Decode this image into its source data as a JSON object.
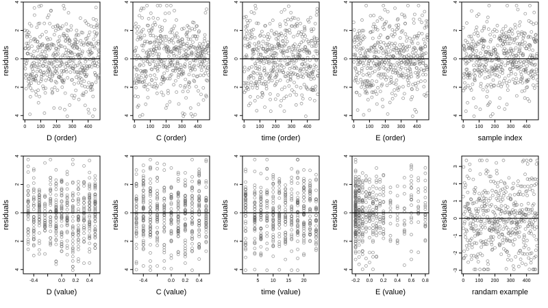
{
  "chart_data": [
    {
      "type": "scatter",
      "xlabel": "D (order)",
      "ylabel": "residuals",
      "xlim": [
        -10,
        475
      ],
      "ylim": [
        -4.3,
        4.0
      ],
      "xticks": [
        0,
        100,
        200,
        300,
        400
      ],
      "yticks": [
        -4,
        -2,
        0,
        2,
        4
      ],
      "ytick_labels": [
        "4",
        "2",
        "0",
        "2",
        "4"
      ],
      "hline": 0,
      "dist": "index",
      "n": 470,
      "seed": 11
    },
    {
      "type": "scatter",
      "xlabel": "C (order)",
      "ylabel": "residuals",
      "xlim": [
        -10,
        475
      ],
      "ylim": [
        -4.3,
        4.0
      ],
      "xticks": [
        0,
        100,
        200,
        300,
        400
      ],
      "yticks": [
        -4,
        -2,
        0,
        2,
        4
      ],
      "ytick_labels": [
        "4",
        "2",
        "0",
        "2",
        "4"
      ],
      "hline": 0,
      "dist": "index",
      "n": 470,
      "seed": 23
    },
    {
      "type": "scatter",
      "xlabel": "time (order)",
      "ylabel": "residuals",
      "xlim": [
        -10,
        475
      ],
      "ylim": [
        -4.3,
        4.0
      ],
      "xticks": [
        0,
        100,
        200,
        300,
        400
      ],
      "yticks": [
        -4,
        -2,
        0,
        2,
        4
      ],
      "ytick_labels": [
        "4",
        "2",
        "0",
        "2",
        "4"
      ],
      "hline": 0,
      "dist": "index",
      "n": 470,
      "seed": 37
    },
    {
      "type": "scatter",
      "xlabel": "E (order)",
      "ylabel": "residuals",
      "xlim": [
        -10,
        475
      ],
      "ylim": [
        -4.3,
        4.0
      ],
      "xticks": [
        0,
        100,
        200,
        300,
        400
      ],
      "yticks": [
        -4,
        -2,
        0,
        2,
        4
      ],
      "ytick_labels": [
        "4",
        "2",
        "0",
        "2",
        "4"
      ],
      "hline": 0,
      "dist": "index",
      "n": 470,
      "seed": 41
    },
    {
      "type": "scatter",
      "xlabel": "sample index",
      "ylabel": "residuals",
      "xlim": [
        -10,
        475
      ],
      "ylim": [
        -4.3,
        4.0
      ],
      "xticks": [
        0,
        100,
        200,
        300,
        400
      ],
      "yticks": [
        -4,
        -2,
        0,
        2,
        4
      ],
      "ytick_labels": [
        "4",
        "2",
        "0",
        "2",
        "4"
      ],
      "hline": 0,
      "dist": "index",
      "n": 470,
      "seed": 53
    },
    {
      "type": "scatter",
      "xlabel": "D (value)",
      "ylabel": "residuals",
      "xlim": [
        -0.55,
        0.55
      ],
      "ylim": [
        -4.3,
        4.0
      ],
      "xticks": [
        -0.4,
        -0.2,
        0,
        0.2,
        0.4
      ],
      "xtick_labels": [
        "-0.4",
        "",
        "0.0",
        "0.2",
        "0.4"
      ],
      "yticks": [
        -4,
        -2,
        0,
        2,
        4
      ],
      "ytick_labels": [
        "4",
        "2",
        "0",
        "2",
        "4"
      ],
      "hline": 0,
      "dist": "levels",
      "levels": [
        -0.48,
        -0.4,
        -0.32,
        -0.24,
        -0.16,
        -0.08,
        0,
        0.08,
        0.16,
        0.24,
        0.32,
        0.4,
        0.48
      ],
      "n": 470,
      "seed": 61
    },
    {
      "type": "scatter",
      "xlabel": "C (value)",
      "ylabel": "residuals",
      "xlim": [
        -0.55,
        0.55
      ],
      "ylim": [
        -4.3,
        4.0
      ],
      "xticks": [
        -0.4,
        -0.2,
        0,
        0.2,
        0.4
      ],
      "xtick_labels": [
        "-0.4",
        "",
        "0.0",
        "0.2",
        "0.4"
      ],
      "yticks": [
        -4,
        -2,
        0,
        2,
        4
      ],
      "ytick_labels": [
        "4",
        "2",
        "0",
        "2",
        "4"
      ],
      "hline": 0,
      "dist": "levels",
      "levels": [
        -0.5,
        -0.4,
        -0.3,
        -0.2,
        -0.1,
        0,
        0.1,
        0.2,
        0.3,
        0.4,
        0.5
      ],
      "n": 470,
      "seed": 71
    },
    {
      "type": "scatter",
      "xlabel": "time (value)",
      "ylabel": "residuals",
      "xlim": [
        0,
        25
      ],
      "ylim": [
        -4.3,
        4.0
      ],
      "xticks": [
        5,
        10,
        15,
        20
      ],
      "yticks": [
        -4,
        -2,
        0,
        2,
        4
      ],
      "ytick_labels": [
        "4",
        "2",
        "0",
        "2",
        "4"
      ],
      "hline": 0,
      "dist": "levels",
      "levels": [
        1,
        4,
        6,
        8,
        10,
        12,
        14,
        16,
        18,
        20,
        22,
        24
      ],
      "n": 470,
      "seed": 83
    },
    {
      "type": "scatter",
      "xlabel": "E (value)",
      "ylabel": "residuals",
      "xlim": [
        -0.25,
        0.85
      ],
      "ylim": [
        -4.3,
        4.0
      ],
      "xticks": [
        -0.2,
        0,
        0.2,
        0.4,
        0.6,
        0.8
      ],
      "xtick_labels": [
        "-0.2",
        "0.0",
        "0.2",
        "0.4",
        "0.6",
        "0.8"
      ],
      "yticks": [
        -4,
        -2,
        0,
        2,
        4
      ],
      "ytick_labels": [
        "4",
        "2",
        "0",
        "2",
        "4"
      ],
      "hline": 0,
      "dist": "skew",
      "levels": [
        -0.2,
        -0.15,
        -0.1,
        -0.05,
        0,
        0.05,
        0.1,
        0.15,
        0.2,
        0.3,
        0.4,
        0.5,
        0.6,
        0.7,
        0.8
      ],
      "n": 470,
      "seed": 97
    },
    {
      "type": "scatter",
      "xlabel": "randam example",
      "ylabel": "residuals",
      "xlim": [
        -10,
        475
      ],
      "ylim": [
        -3.2,
        3.6
      ],
      "xticks": [
        0,
        100,
        200,
        300,
        400
      ],
      "yticks": [
        -3,
        -2,
        -1,
        0,
        1,
        2,
        3
      ],
      "ytick_labels": [
        "-3",
        "-2",
        "-1",
        "0",
        "1",
        "2",
        "3"
      ],
      "hline": 0,
      "dist": "index",
      "n": 470,
      "seed": 109
    }
  ]
}
